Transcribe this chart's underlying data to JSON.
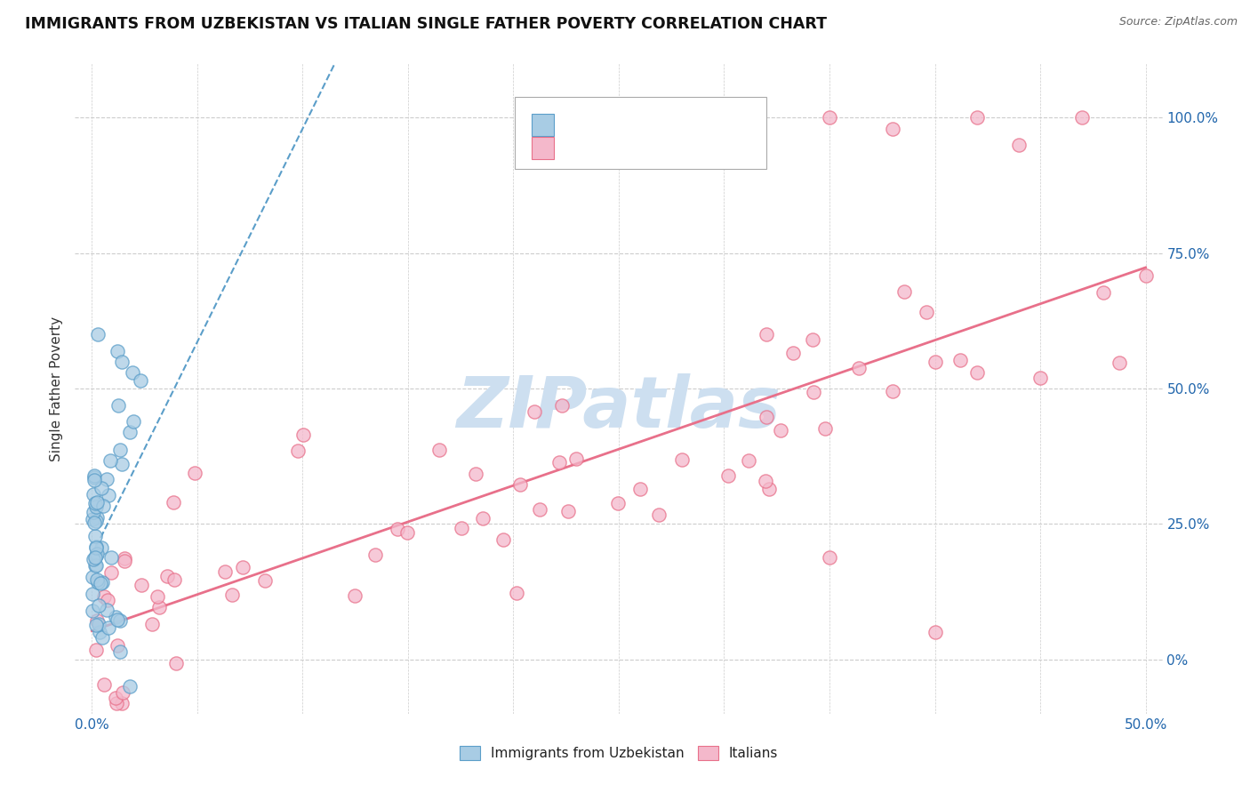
{
  "title": "IMMIGRANTS FROM UZBEKISTAN VS ITALIAN SINGLE FATHER POVERTY CORRELATION CHART",
  "source": "Source: ZipAtlas.com",
  "ylabel": "Single Father Poverty",
  "color_blue": "#a8cce4",
  "color_blue_edge": "#5b9ec9",
  "color_blue_line": "#5b9ec9",
  "color_pink": "#f4b8cb",
  "color_pink_edge": "#e8708a",
  "color_pink_line": "#e8708a",
  "color_text_blue": "#2166ac",
  "watermark_color": "#cddff0",
  "background_color": "#ffffff",
  "grid_color": "#cccccc",
  "legend_label1": "Immigrants from Uzbekistan",
  "legend_label2": "Italians",
  "ytick_vals": [
    0.0,
    0.25,
    0.5,
    0.75,
    1.0
  ],
  "ytick_labels": [
    "0%",
    "25.0%",
    "50.0%",
    "75.0%",
    "100.0%"
  ]
}
